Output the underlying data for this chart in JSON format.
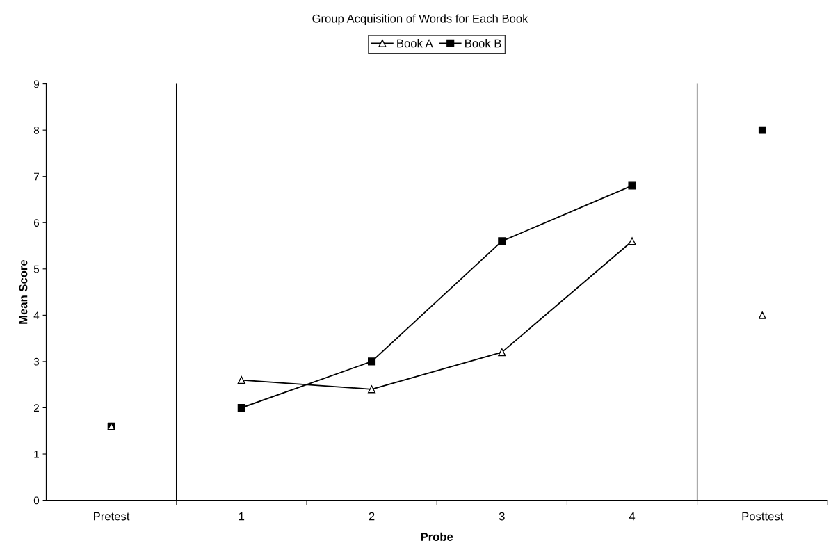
{
  "chart_data": {
    "type": "line",
    "title": "Group Acquisition of Words for Each Book",
    "xlabel": "Probe",
    "ylabel": "Mean Score",
    "x": [
      0,
      1,
      2,
      3,
      4,
      5
    ],
    "xlim": [
      -0.5,
      5.5
    ],
    "xticks": [
      {
        "value": 0,
        "label": "Pretest"
      },
      {
        "value": 0.5,
        "label": null
      },
      {
        "value": 1,
        "label": "1"
      },
      {
        "value": 1.5,
        "label": null
      },
      {
        "value": 2,
        "label": "2"
      },
      {
        "value": 2.5,
        "label": null
      },
      {
        "value": 3,
        "label": "3"
      },
      {
        "value": 3.5,
        "label": null
      },
      {
        "value": 4,
        "label": "4"
      },
      {
        "value": 4.5,
        "label": null
      },
      {
        "value": 5,
        "label": "Posttest"
      },
      {
        "value": 5.5,
        "label": null
      }
    ],
    "ylim": [
      0,
      9
    ],
    "yticks": [
      0,
      1,
      2,
      3,
      4,
      5,
      6,
      7,
      8,
      9
    ],
    "series": [
      {
        "name": "Book A",
        "marker": "triangle",
        "color": "#000000",
        "values": [
          null,
          2.6,
          2.4,
          3.2,
          5.6,
          null
        ]
      },
      {
        "name": "Book B",
        "marker": "square",
        "color": "#000000",
        "values": [
          null,
          2.0,
          3.0,
          5.6,
          6.8,
          null
        ]
      },
      {
        "type": "scatter",
        "marker": "square",
        "color": "#000000",
        "values": [
          1.6,
          null,
          null,
          null,
          null,
          8.0
        ]
      },
      {
        "type": "scatter",
        "marker": "triangle",
        "color": "#000000",
        "values": [
          1.6,
          null,
          null,
          null,
          null,
          4.0
        ]
      }
    ],
    "ref_lines": [
      {
        "axis": "x",
        "value": 0.5,
        "color": "#000000"
      },
      {
        "axis": "x",
        "value": 4.5,
        "color": "#000000"
      }
    ],
    "legend": "top",
    "grid": false
  }
}
